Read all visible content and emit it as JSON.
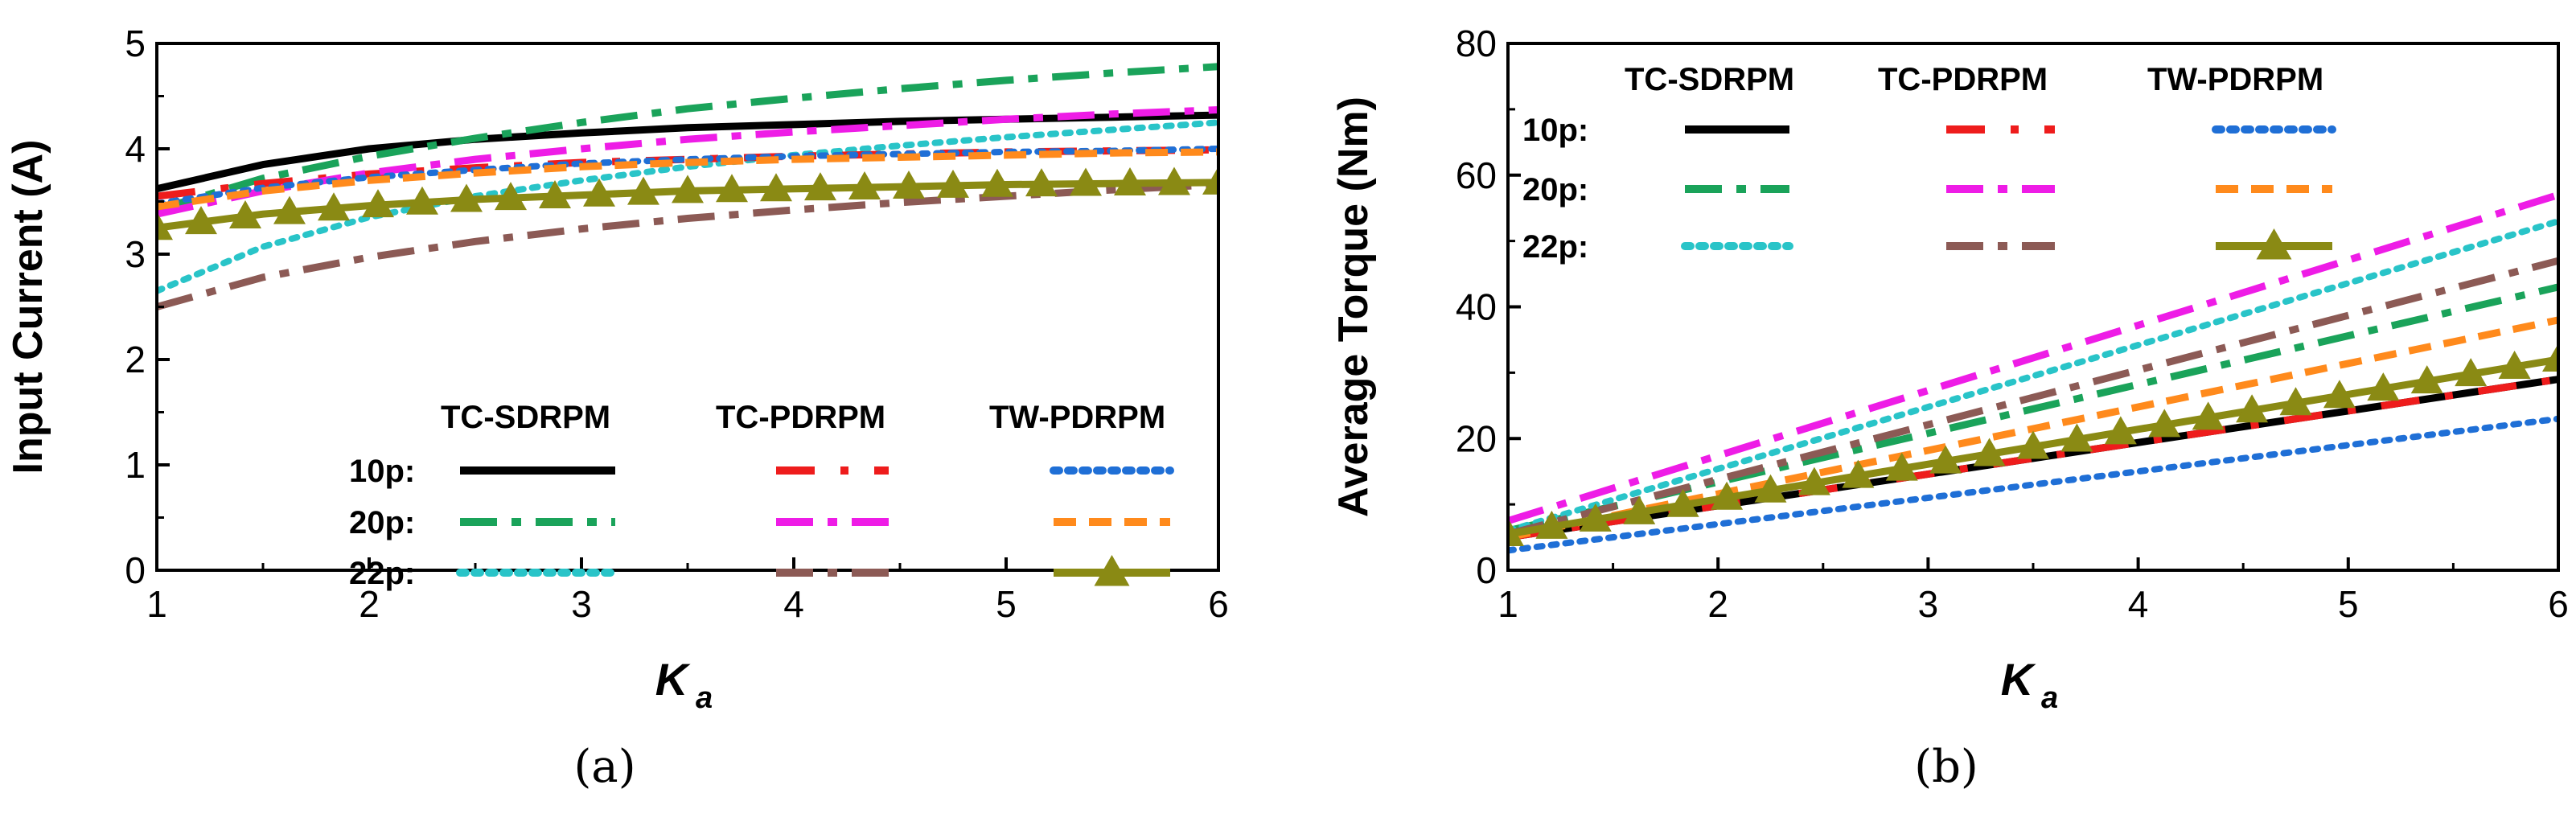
{
  "chart_data": [
    {
      "id": "a",
      "type": "line",
      "panel_label": "(a)",
      "ylabel": "Input Current (A)",
      "xlabel_main": "K",
      "xlabel_sub": "a",
      "xlim": [
        1,
        6
      ],
      "ylim": [
        0,
        5
      ],
      "xticks": [
        1,
        2,
        3,
        4,
        5,
        6
      ],
      "yticks": [
        0,
        1,
        2,
        3,
        4,
        5
      ],
      "grid": false,
      "legend": {
        "placement": "bottom-right",
        "headers": [
          "TC-SDRPM",
          "TC-PDRPM",
          "TW-PDRPM"
        ],
        "rows": [
          "10p:",
          "20p:",
          "22p:"
        ]
      },
      "series": [
        {
          "name": "TC-SDRPM 10p",
          "color": "#000000",
          "style": "solid",
          "x": [
            1,
            1.5,
            2,
            2.5,
            3,
            3.5,
            4,
            4.5,
            5,
            5.5,
            6
          ],
          "values": [
            3.62,
            3.85,
            4.0,
            4.09,
            4.15,
            4.2,
            4.23,
            4.26,
            4.28,
            4.3,
            4.32
          ]
        },
        {
          "name": "TC-SDRPM 20p",
          "color": "#1aa35a",
          "style": "dashdot",
          "x": [
            1,
            1.5,
            2,
            2.5,
            3,
            3.5,
            4,
            4.5,
            5,
            5.5,
            6
          ],
          "values": [
            3.42,
            3.72,
            3.93,
            4.1,
            4.25,
            4.38,
            4.48,
            4.57,
            4.65,
            4.72,
            4.78
          ]
        },
        {
          "name": "TC-SDRPM 22p",
          "color": "#29c4c8",
          "style": "dot",
          "x": [
            1,
            1.5,
            2,
            2.5,
            3,
            3.5,
            4,
            4.5,
            5,
            5.5,
            6
          ],
          "values": [
            2.65,
            3.07,
            3.35,
            3.55,
            3.7,
            3.83,
            3.94,
            4.03,
            4.11,
            4.18,
            4.25
          ]
        },
        {
          "name": "TC-PDRPM 10p",
          "color": "#ee1c1c",
          "style": "dashdot-sparse",
          "x": [
            1,
            1.5,
            2,
            2.5,
            3,
            3.5,
            4,
            4.5,
            5,
            5.5,
            6
          ],
          "values": [
            3.55,
            3.67,
            3.76,
            3.82,
            3.87,
            3.9,
            3.93,
            3.95,
            3.97,
            3.98,
            3.99
          ]
        },
        {
          "name": "TC-PDRPM 20p",
          "color": "#ee1ce6",
          "style": "dashdot",
          "x": [
            1,
            1.5,
            2,
            2.5,
            3,
            3.5,
            4,
            4.5,
            5,
            5.5,
            6
          ],
          "values": [
            3.38,
            3.6,
            3.77,
            3.9,
            4.0,
            4.09,
            4.16,
            4.22,
            4.28,
            4.33,
            4.37
          ]
        },
        {
          "name": "TC-PDRPM 22p",
          "color": "#8c5a55",
          "style": "dashdot",
          "x": [
            1,
            1.5,
            2,
            2.5,
            3,
            3.5,
            4,
            4.5,
            5,
            5.5,
            6
          ],
          "values": [
            2.5,
            2.78,
            2.97,
            3.12,
            3.24,
            3.34,
            3.42,
            3.49,
            3.55,
            3.61,
            3.66
          ]
        },
        {
          "name": "TW-PDRPM 10p",
          "color": "#1f6fd6",
          "style": "dot",
          "x": [
            1,
            1.5,
            2,
            2.5,
            3,
            3.5,
            4,
            4.5,
            5,
            5.5,
            6
          ],
          "values": [
            3.48,
            3.63,
            3.73,
            3.8,
            3.86,
            3.9,
            3.93,
            3.95,
            3.97,
            3.98,
            4.0
          ]
        },
        {
          "name": "TW-PDRPM 20p",
          "color": "#ff8a1c",
          "style": "dash",
          "x": [
            1,
            1.5,
            2,
            2.5,
            3,
            3.5,
            4,
            4.5,
            5,
            5.5,
            6
          ],
          "values": [
            3.45,
            3.6,
            3.7,
            3.77,
            3.83,
            3.87,
            3.9,
            3.92,
            3.94,
            3.96,
            3.97
          ]
        },
        {
          "name": "TW-PDRPM 22p",
          "color": "#8a8a14",
          "style": "solid-triangle",
          "x": [
            1,
            1.5,
            2,
            2.5,
            3,
            3.5,
            4,
            4.5,
            5,
            5.5,
            6
          ],
          "values": [
            3.25,
            3.38,
            3.46,
            3.52,
            3.56,
            3.6,
            3.62,
            3.64,
            3.66,
            3.67,
            3.68
          ]
        }
      ]
    },
    {
      "id": "b",
      "type": "line",
      "panel_label": "(b)",
      "ylabel": "Average Torque (Nm)",
      "xlabel_main": "K",
      "xlabel_sub": "a",
      "xlim": [
        1,
        6
      ],
      "ylim": [
        0,
        80
      ],
      "xticks": [
        1,
        2,
        3,
        4,
        5,
        6
      ],
      "yticks": [
        0,
        20,
        40,
        60,
        80
      ],
      "grid": false,
      "legend": {
        "placement": "top-left",
        "headers": [
          "TC-SDRPM",
          "TC-PDRPM",
          "TW-PDRPM"
        ],
        "rows": [
          "10p:",
          "20p:",
          "22p:"
        ]
      },
      "series": [
        {
          "name": "TC-SDRPM 10p",
          "color": "#000000",
          "style": "solid",
          "x": [
            1,
            6
          ],
          "values": [
            5,
            29
          ]
        },
        {
          "name": "TC-SDRPM 20p",
          "color": "#1aa35a",
          "style": "dashdot",
          "x": [
            1,
            6
          ],
          "values": [
            6,
            43
          ]
        },
        {
          "name": "TC-SDRPM 22p",
          "color": "#29c4c8",
          "style": "dot",
          "x": [
            1,
            6
          ],
          "values": [
            6,
            53
          ]
        },
        {
          "name": "TC-PDRPM 10p",
          "color": "#ee1c1c",
          "style": "dashdot-sparse",
          "x": [
            1,
            6
          ],
          "values": [
            5,
            29
          ]
        },
        {
          "name": "TC-PDRPM 20p",
          "color": "#ee1ce6",
          "style": "dashdot",
          "x": [
            1,
            6
          ],
          "values": [
            7.5,
            57
          ]
        },
        {
          "name": "TC-PDRPM 22p",
          "color": "#8c5a55",
          "style": "dashdot",
          "x": [
            1,
            6
          ],
          "values": [
            5.5,
            47
          ]
        },
        {
          "name": "TW-PDRPM 10p",
          "color": "#1f6fd6",
          "style": "dot",
          "x": [
            1,
            6
          ],
          "values": [
            3,
            23
          ]
        },
        {
          "name": "TW-PDRPM 20p",
          "color": "#ff8a1c",
          "style": "dash",
          "x": [
            1,
            6
          ],
          "values": [
            5,
            38
          ]
        },
        {
          "name": "TW-PDRPM 22p",
          "color": "#8a8a14",
          "style": "solid-triangle",
          "x": [
            1,
            6
          ],
          "values": [
            5.5,
            32
          ]
        }
      ]
    }
  ]
}
